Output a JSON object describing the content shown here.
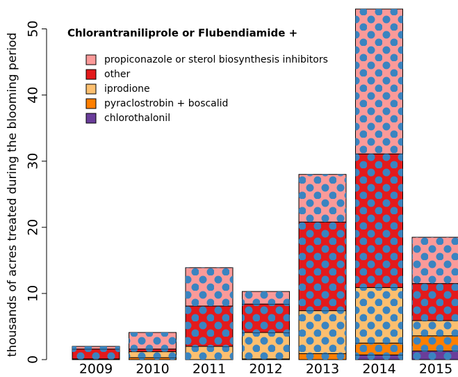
{
  "chart_data": {
    "type": "stacked_bar",
    "title": "Chlorantraniliprole or Flubendiamide +",
    "y_label": "thousands of acres treated during the blooming period",
    "categories": [
      "2009",
      "2010",
      "2011",
      "2012",
      "2013",
      "2014",
      "2015"
    ],
    "series": [
      {
        "name": "chlorothalonil",
        "color": "#6a3d9a",
        "values": [
          0,
          0,
          0,
          0,
          0,
          0.7,
          1.3
        ]
      },
      {
        "name": "pyraclostrobin + boscalid",
        "color": "#ff7f00",
        "values": [
          0,
          0.3,
          0,
          0.1,
          0.9,
          1.8,
          2.3
        ]
      },
      {
        "name": "iprodione",
        "color": "#fdbf6f",
        "values": [
          0.1,
          0.9,
          2.0,
          4.0,
          6.5,
          8.4,
          2.3
        ]
      },
      {
        "name": "other",
        "color": "#e31a1c",
        "values": [
          1.5,
          0.4,
          6.1,
          4.3,
          13.4,
          20.2,
          5.6
        ]
      },
      {
        "name": "propiconazole or sterol biosynthesis inhibitors",
        "color": "#fb9a99",
        "values": [
          0.4,
          2.5,
          5.8,
          1.9,
          7.2,
          21.9,
          7.0
        ]
      }
    ],
    "ylim": [
      0,
      53
    ],
    "yticks": [
      0,
      10,
      20,
      30,
      40,
      50
    ],
    "legend": "top-left",
    "grid": false
  }
}
